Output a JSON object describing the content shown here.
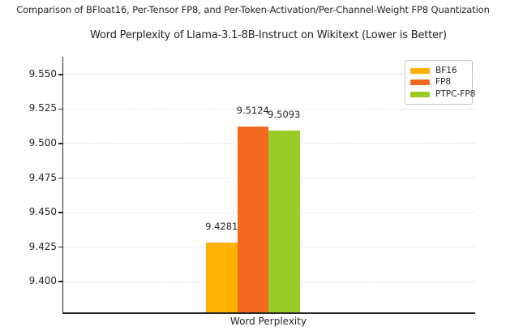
{
  "figure": {
    "suptitle": "Comparison of BFloat16, Per-Tensor FP8, and Per-Token-Activation/Per-Channel-Weight FP8 Quantization"
  },
  "chart_data": {
    "type": "bar",
    "title": "Word Perplexity of Llama-3.1-8B-Instruct on Wikitext (Lower is Better)",
    "categories": [
      "Word Perplexity"
    ],
    "series": [
      {
        "name": "BF16",
        "values": [
          9.4281
        ],
        "color": "#ffb005"
      },
      {
        "name": "FP8",
        "values": [
          9.5124
        ],
        "color": "#f2691f"
      },
      {
        "name": "PTPC-FP8",
        "values": [
          9.5093
        ],
        "color": "#9bcb26"
      }
    ],
    "xlabel": "Word Perplexity",
    "ylabel": "",
    "ylim": [
      9.3777,
      9.5629
    ],
    "yticks": [
      9.4,
      9.425,
      9.45,
      9.475,
      9.5,
      9.525,
      9.55
    ],
    "ytick_decimals": 3,
    "bar_label_decimals": 4,
    "grid": "horizontal-dotted",
    "legend_position": "upper-right",
    "legend_entries": [
      "BF16",
      "FP8",
      "PTPC-FP8"
    ]
  },
  "colors": {
    "text": "#262626",
    "axis": "#262626",
    "grid": "#d4d4d4",
    "legend_border": "#c8c8c8",
    "background": "#ffffff"
  }
}
